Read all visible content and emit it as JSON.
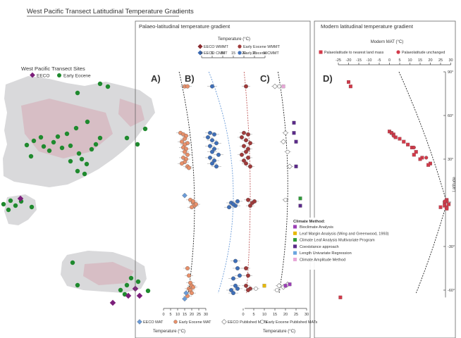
{
  "title": "West Pacific Transect Latitudinal Temperature Gradients",
  "map": {
    "legend_title": "West Pacific Transect Sites",
    "legend_items": [
      {
        "label": "EECO",
        "color": "#7b1e7a"
      },
      {
        "label": "Early Eocene",
        "color": "#1f8a2e"
      }
    ]
  },
  "palaeo": {
    "title": "Palaeo-latitudinal temperature gradient",
    "top_axis_label": "Temperature (°C)",
    "top_legend": [
      {
        "label": "EECO WMMT",
        "color": "#8a2a2e"
      },
      {
        "label": "Early Eocene WMMT",
        "color": "#a03a3a"
      },
      {
        "label": "EECO CMMT",
        "color": "#3a68b0"
      },
      {
        "label": "Early Eocene CMMT",
        "color": "#3f6fb8"
      }
    ],
    "bottom_axis_label_left": "Temperature (°C)",
    "bottom_axis_label_right": "Temperature (°C)",
    "bottom_legend": [
      {
        "label": "EECO MAT",
        "color": "#6a9bd8"
      },
      {
        "label": "Early Eocene MAT",
        "color": "#e8906a"
      },
      {
        "label": "EECO Published MATs",
        "color": "#999999"
      },
      {
        "label": "Early Eocene Published MATs",
        "color": "#999999"
      }
    ],
    "panel_labels": [
      "A)",
      "B)",
      "C)"
    ]
  },
  "modern": {
    "title": "Modern latitudinal temperature gradient",
    "axis_label": "Modern MAT (°C)",
    "legend": [
      {
        "label": "Palaeolatitude to nearest land mass",
        "color": "#d23a4a"
      },
      {
        "label": "Palaeolatitude unchanged",
        "color": "#d23a4a"
      }
    ],
    "panel_label": "D)",
    "ylabel": "Latitude"
  },
  "climate_method": {
    "title": "Climate Method:",
    "items": [
      {
        "label": "Bioclimate Analysis",
        "color": "#9b3fb5"
      },
      {
        "label": "Leaf Margin Analysis (Wing and Greenwood, 1993)",
        "color": "#e6b800"
      },
      {
        "label": "Climate Leaf Analysis Multivariate Program",
        "color": "#2f9a3a"
      },
      {
        "label": "Coexistance approach",
        "color": "#5b2a8a"
      },
      {
        "label": "Length Univariate Regression",
        "color": "#6aa6e0"
      },
      {
        "label": "Climate Amplitude Method",
        "color": "#e8a8d8"
      }
    ]
  },
  "chart_data": [
    {
      "type": "scatter",
      "name": "A",
      "xlim": [
        0,
        30
      ],
      "xticks": [
        0,
        5,
        10,
        15,
        20,
        25,
        30
      ],
      "ylim": [
        -60,
        90
      ],
      "series": [
        {
          "name": "Early Eocene MAT",
          "color": "#e8906a",
          "marker": "circle",
          "points": [
            [
              15,
              80
            ],
            [
              17,
              80
            ],
            [
              12,
              48
            ],
            [
              14,
              47
            ],
            [
              16,
              46
            ],
            [
              15,
              44
            ],
            [
              13,
              42
            ],
            [
              17,
              41
            ],
            [
              15,
              40
            ],
            [
              14,
              38
            ],
            [
              16,
              37
            ],
            [
              15,
              35
            ],
            [
              17,
              33
            ],
            [
              14,
              31
            ],
            [
              16,
              30
            ],
            [
              15,
              28
            ],
            [
              13,
              27
            ],
            [
              17,
              25
            ],
            [
              18,
              24
            ],
            [
              19,
              2
            ],
            [
              21,
              0
            ],
            [
              22,
              -2
            ],
            [
              20,
              -3
            ],
            [
              23,
              -1
            ],
            [
              21,
              1
            ],
            [
              17,
              -45
            ],
            [
              18,
              -50
            ],
            [
              19,
              -55
            ],
            [
              20,
              -57
            ],
            [
              18,
              -59
            ],
            [
              19,
              -60
            ],
            [
              21,
              -58
            ],
            [
              20,
              -62
            ],
            [
              17,
              -64
            ]
          ]
        },
        {
          "name": "EECO MAT",
          "color": "#6a9bd8",
          "marker": "diamond",
          "points": [
            [
              15,
              5
            ],
            [
              16,
              -62
            ],
            [
              15,
              -66
            ]
          ]
        }
      ]
    },
    {
      "type": "scatter",
      "name": "B",
      "xlim": [
        0,
        30
      ],
      "ylim": [
        -60,
        90
      ],
      "series": [
        {
          "name": "Early Eocene CMMT",
          "color": "#3f6fb8",
          "marker": "circle",
          "points": [
            [
              5,
              80
            ],
            [
              4,
              48
            ],
            [
              6,
              47
            ],
            [
              3,
              45
            ],
            [
              5,
              43
            ],
            [
              7,
              41
            ],
            [
              4,
              39
            ],
            [
              6,
              37
            ],
            [
              5,
              35
            ],
            [
              8,
              33
            ],
            [
              4,
              31
            ],
            [
              6,
              29
            ],
            [
              5,
              27
            ],
            [
              7,
              25
            ],
            [
              14,
              0
            ],
            [
              16,
              -2
            ],
            [
              15,
              -1
            ],
            [
              17,
              1
            ],
            [
              13,
              -3
            ],
            [
              16,
              -40
            ],
            [
              17,
              -45
            ],
            [
              18,
              -50
            ],
            [
              15,
              -52
            ],
            [
              16,
              -57
            ],
            [
              14,
              -60
            ],
            [
              17,
              -59
            ],
            [
              15,
              -62
            ]
          ]
        },
        {
          "name": "Early Eocene WMMT",
          "color": "#a03a3a",
          "marker": "circle",
          "points": [
            [
              21,
              80
            ],
            [
              20,
              48
            ],
            [
              22,
              47
            ],
            [
              19,
              45
            ],
            [
              21,
              43
            ],
            [
              23,
              41
            ],
            [
              20,
              39
            ],
            [
              22,
              37
            ],
            [
              21,
              35
            ],
            [
              19,
              33
            ],
            [
              22,
              31
            ],
            [
              20,
              29
            ],
            [
              21,
              27
            ],
            [
              23,
              25
            ],
            [
              22,
              2
            ],
            [
              24,
              0
            ],
            [
              23,
              -2
            ],
            [
              25,
              1
            ],
            [
              21,
              -45
            ],
            [
              22,
              -50
            ],
            [
              21,
              -57
            ],
            [
              23,
              -59
            ],
            [
              22,
              -60
            ]
          ]
        }
      ]
    },
    {
      "type": "scatter",
      "name": "C",
      "xlim": [
        0,
        30
      ],
      "ylim": [
        -60,
        90
      ],
      "series": [
        {
          "name": "Published MATs",
          "color": "#777777",
          "marker": "mixed",
          "points": [
            [
              17,
              80
            ],
            [
              15,
              80
            ],
            [
              20,
              48
            ],
            [
              19,
              42
            ],
            [
              21,
              35
            ],
            [
              22,
              25
            ],
            [
              20,
              2
            ],
            [
              17,
              -57
            ],
            [
              16,
              -60
            ],
            [
              19,
              -58
            ],
            [
              6,
              -59
            ],
            [
              21,
              -56
            ]
          ]
        }
      ]
    },
    {
      "type": "scatter",
      "name": "D",
      "xlabel": "Modern MAT (°C)",
      "ylabel": "Latitude",
      "xlim": [
        -25,
        30
      ],
      "xticks": [
        -25,
        -20,
        -15,
        -10,
        -5,
        0,
        5,
        10,
        15,
        20,
        25,
        30
      ],
      "ylim": [
        -60,
        90
      ],
      "yticks": [
        90,
        60,
        30,
        0,
        -30,
        -60
      ],
      "series": [
        {
          "name": "Palaeolatitude to nearest land mass",
          "color": "#d23a4a",
          "marker": "square",
          "points": [
            [
              -20,
              83
            ],
            [
              -19,
              80
            ],
            [
              0,
              49
            ],
            [
              1,
              48
            ],
            [
              2,
              47
            ],
            [
              3,
              45
            ],
            [
              5,
              44
            ],
            [
              7,
              42
            ],
            [
              9,
              40
            ],
            [
              11,
              38
            ],
            [
              13,
              35
            ],
            [
              12,
              33
            ],
            [
              16,
              31
            ],
            [
              15,
              30
            ],
            [
              20,
              27
            ],
            [
              19,
              26
            ],
            [
              28,
              2
            ],
            [
              28,
              1
            ],
            [
              27,
              0
            ],
            [
              29,
              -1
            ],
            [
              27,
              -2
            ],
            [
              28,
              -3
            ],
            [
              28,
              -4
            ],
            [
              25,
              -3
            ],
            [
              -24,
              -65
            ]
          ]
        },
        {
          "name": "Palaeolatitude unchanged",
          "color": "#d23a4a",
          "marker": "circle",
          "points": [
            [
              1,
              48
            ],
            [
              2,
              46
            ],
            [
              12,
              38
            ],
            [
              18,
              31
            ],
            [
              27,
              1
            ]
          ]
        }
      ]
    }
  ]
}
